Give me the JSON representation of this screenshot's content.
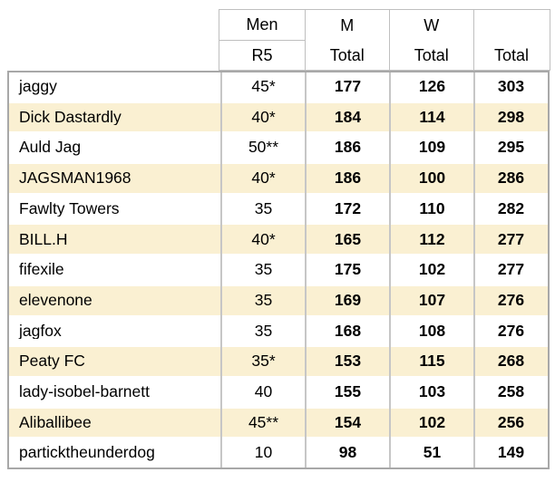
{
  "chart_data": {
    "type": "table",
    "title": "",
    "header": {
      "name_col": "",
      "men_r5": {
        "line1": "Men",
        "line2": "R5"
      },
      "m_total": {
        "line1": "M",
        "line2": "Total"
      },
      "w_total": {
        "line1": "W",
        "line2": "Total"
      },
      "total": {
        "line1": "",
        "line2": "Total"
      }
    },
    "columns": [
      "",
      "Men R5",
      "M Total",
      "W Total",
      "Total"
    ],
    "rows": [
      {
        "name": "jaggy",
        "men_r5": "45*",
        "m_total": "177",
        "w_total": "126",
        "total": "303"
      },
      {
        "name": "Dick Dastardly",
        "men_r5": "40*",
        "m_total": "184",
        "w_total": "114",
        "total": "298"
      },
      {
        "name": "Auld Jag",
        "men_r5": "50**",
        "m_total": "186",
        "w_total": "109",
        "total": "295"
      },
      {
        "name": "JAGSMAN1968",
        "men_r5": "40*",
        "m_total": "186",
        "w_total": "100",
        "total": "286"
      },
      {
        "name": "Fawlty Towers",
        "men_r5": "35",
        "m_total": "172",
        "w_total": "110",
        "total": "282"
      },
      {
        "name": "BILL.H",
        "men_r5": "40*",
        "m_total": "165",
        "w_total": "112",
        "total": "277"
      },
      {
        "name": "fifexile",
        "men_r5": "35",
        "m_total": "175",
        "w_total": "102",
        "total": "277"
      },
      {
        "name": "elevenone",
        "men_r5": "35",
        "m_total": "169",
        "w_total": "107",
        "total": "276"
      },
      {
        "name": "jagfox",
        "men_r5": "35",
        "m_total": "168",
        "w_total": "108",
        "total": "276"
      },
      {
        "name": "Peaty FC",
        "men_r5": "35*",
        "m_total": "153",
        "w_total": "115",
        "total": "268"
      },
      {
        "name": "lady-isobel-barnett",
        "men_r5": "40",
        "m_total": "155",
        "w_total": "103",
        "total": "258"
      },
      {
        "name": "Aliballibee",
        "men_r5": "45**",
        "m_total": "154",
        "w_total": "102",
        "total": "256"
      },
      {
        "name": "particktheunderdog",
        "men_r5": "10",
        "m_total": "98",
        "w_total": "51",
        "total": "149"
      }
    ],
    "layout_hints": {
      "striped_rows": "odd rows highlighted",
      "bold_columns": [
        "M Total",
        "W Total",
        "Total"
      ]
    },
    "colors": {
      "row_highlight": "#faf0d2",
      "grid_line": "#c6c6c6",
      "outer_border": "#a8a8a8",
      "header_border": "#bfbfbf",
      "text": "#000000",
      "background": "#ffffff"
    }
  }
}
